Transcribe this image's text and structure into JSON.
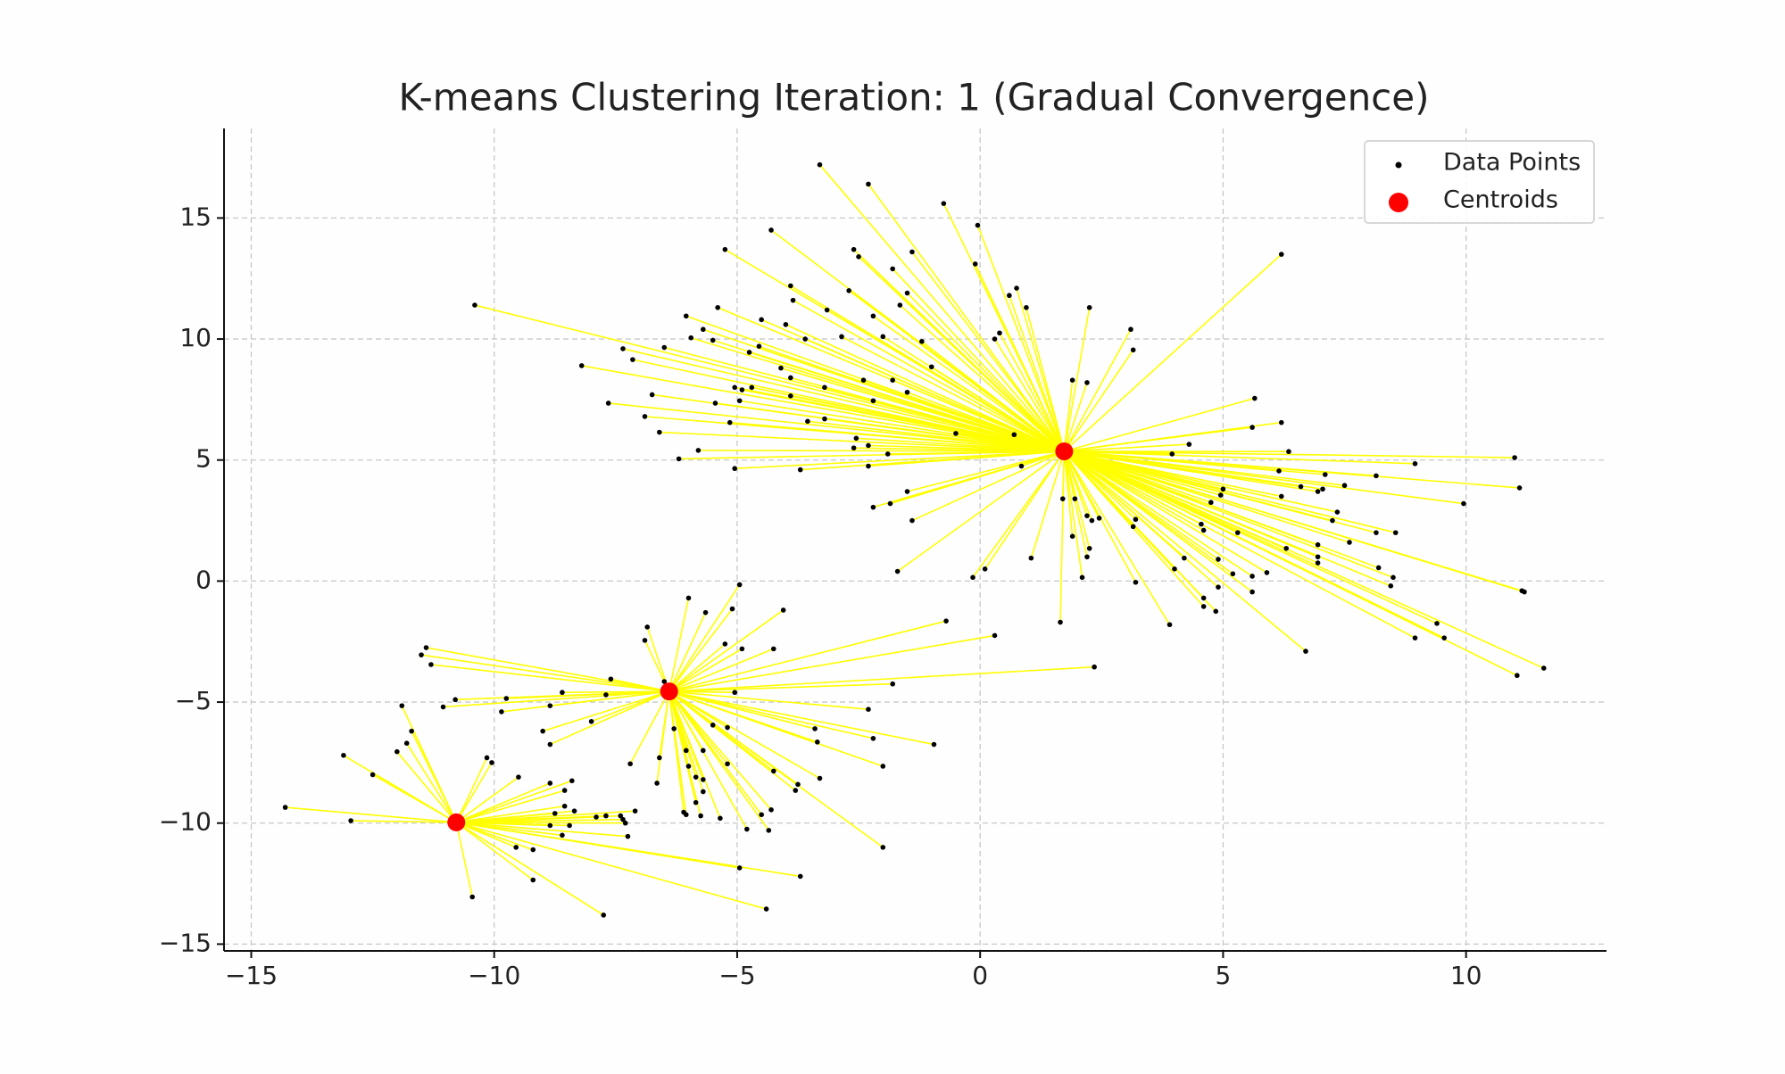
{
  "chart_data": {
    "type": "scatter",
    "title": "K-means Clustering Iteration: 1 (Gradual Convergence)",
    "xlim": [
      -15.56,
      12.89
    ],
    "ylim": [
      -15.28,
      18.7
    ],
    "xticks": [
      {
        "value": -15,
        "label": "−15"
      },
      {
        "value": -10,
        "label": "−10"
      },
      {
        "value": -5,
        "label": "−5"
      },
      0,
      5,
      10
    ],
    "yticks": [
      {
        "value": -15,
        "label": "−15"
      },
      {
        "value": -10,
        "label": "−10"
      },
      {
        "value": -5,
        "label": "−5"
      },
      0,
      5,
      10,
      15
    ],
    "grid": true,
    "legend": "upper right",
    "link_color": "#ffff00",
    "series": [
      {
        "name": "Data Points",
        "color": "#000000",
        "groups": [
          {
            "x": [
              -3.3,
              -2.3,
              -0.75,
              -0.05,
              6.2,
              -4.3,
              -5.25,
              -2.6,
              -1.4,
              -0.1,
              -1.8,
              -2.5,
              -3.9,
              -2.7,
              -1.5,
              0.75,
              0.6,
              0.95,
              2.25,
              -10.4,
              -5.4,
              -3.85,
              -3.15,
              -2.2,
              -1.65,
              -6.05,
              -5.7,
              -4.5,
              -4.0,
              -2.85,
              -2.0,
              0.3,
              0.4,
              3.1,
              3.15,
              -7.35,
              -6.5,
              -5.95,
              -5.5,
              -7.15,
              -4.75,
              -4.55,
              -3.6,
              -1.2,
              -8.2,
              -4.1,
              -1.0,
              1.9,
              2.2,
              -6.75,
              -3.9,
              -5.05,
              -4.9,
              -4.7,
              -3.2,
              -2.4,
              -1.8,
              -1.5,
              5.65,
              -7.65,
              -5.45,
              -4.95,
              -3.9,
              -2.2,
              -6.9,
              -6.6,
              -5.15,
              -3.55,
              -3.2,
              5.6,
              6.2,
              0.7,
              -2.55,
              -0.5,
              4.3,
              -5.8,
              -2.6,
              -2.3,
              -1.9,
              6.35,
              -6.2,
              3.95,
              11.0,
              8.95,
              -5.05,
              -3.7,
              -2.3,
              0.85,
              7.1,
              8.15,
              6.15,
              6.6,
              7.05,
              7.5,
              6.95,
              11.1,
              5.0,
              4.95,
              -1.5,
              6.2,
              1.7,
              1.95,
              4.75,
              9.95,
              -1.85,
              -2.2,
              7.35,
              7.25,
              2.2,
              3.2,
              2.3,
              2.45,
              -1.4,
              4.55,
              3.15,
              1.9,
              4.6,
              5.3,
              8.15,
              8.55,
              7.6,
              6.95,
              6.3,
              2.25,
              6.95,
              4.2,
              4.9,
              2.2,
              1.05,
              6.95,
              4.0,
              0.1,
              -1.7,
              5.9,
              5.2,
              5.6,
              8.2,
              2.1,
              -0.15,
              8.5,
              8.45,
              3.2,
              4.9,
              5.6,
              11.15,
              11.2,
              4.6,
              4.6,
              4.85,
              1.65,
              3.9,
              9.4,
              8.95,
              9.55,
              6.7,
              11.6,
              11.05
            ],
            "values": [
              17.2,
              16.4,
              15.6,
              14.7,
              13.5,
              14.5,
              13.7,
              13.7,
              13.6,
              13.1,
              12.9,
              13.4,
              12.2,
              12.0,
              11.9,
              12.1,
              11.8,
              11.3,
              11.3,
              11.4,
              11.3,
              11.6,
              11.2,
              10.95,
              11.4,
              10.95,
              10.4,
              10.8,
              10.6,
              10.1,
              10.1,
              10.0,
              10.25,
              10.4,
              9.55,
              9.6,
              9.65,
              10.05,
              9.95,
              9.15,
              9.45,
              9.7,
              10.0,
              9.9,
              8.9,
              8.8,
              8.85,
              8.3,
              8.2,
              7.7,
              8.4,
              8.0,
              7.9,
              8.0,
              8.0,
              8.3,
              8.3,
              7.8,
              7.55,
              7.35,
              7.35,
              7.45,
              7.65,
              7.45,
              6.8,
              6.15,
              6.55,
              6.6,
              6.7,
              6.35,
              6.55,
              6.05,
              5.9,
              6.1,
              5.65,
              5.4,
              5.5,
              5.6,
              5.25,
              5.35,
              5.05,
              5.25,
              5.1,
              4.85,
              4.65,
              4.6,
              4.75,
              4.75,
              4.4,
              4.35,
              4.55,
              3.9,
              3.8,
              3.95,
              3.7,
              3.85,
              3.8,
              3.55,
              3.7,
              3.5,
              3.4,
              3.4,
              3.25,
              3.2,
              3.2,
              3.05,
              2.85,
              2.5,
              2.7,
              2.55,
              2.5,
              2.6,
              2.5,
              2.35,
              2.25,
              1.85,
              2.1,
              2.0,
              2.0,
              2.0,
              1.6,
              1.5,
              1.35,
              1.35,
              1.0,
              0.95,
              0.9,
              1.0,
              0.95,
              0.75,
              0.5,
              0.5,
              0.4,
              0.35,
              0.3,
              0.2,
              0.55,
              0.15,
              0.15,
              0.15,
              -0.2,
              -0.05,
              -0.25,
              -0.45,
              -0.4,
              -0.45,
              -0.7,
              -1.05,
              -1.25,
              -1.7,
              -1.8,
              -1.75,
              -2.35,
              -2.35,
              -2.9,
              -3.6,
              -3.9
            ]
          },
          {
            "x": [
              -4.95,
              -6.0,
              -4.05,
              -5.65,
              -5.1,
              -0.7,
              -6.85,
              0.3,
              -6.9,
              -5.25,
              -4.9,
              -4.25,
              -11.4,
              -11.5,
              -11.3,
              2.35,
              -7.6,
              -6.5,
              -1.8,
              -8.6,
              -7.7,
              -5.05,
              -10.8,
              -9.75,
              -11.05,
              -8.85,
              -2.3,
              -9.85,
              -8.0,
              -5.5,
              -5.2,
              -3.4,
              -6.3,
              -9.0,
              -2.2,
              -3.35,
              -0.95,
              -8.85,
              -6.05,
              -5.7,
              -6.6,
              -7.2,
              -5.2,
              -6.0,
              -2.0,
              -4.25,
              -5.85,
              -5.7,
              -3.3,
              -6.65,
              -3.75,
              -3.8,
              -5.7,
              -5.85,
              -4.3,
              -6.1,
              -6.05,
              -5.75,
              -4.5,
              -5.35,
              -4.8,
              -4.35,
              -2.0
            ],
            "values": [
              -0.15,
              -0.7,
              -1.2,
              -1.3,
              -1.15,
              -1.65,
              -1.9,
              -2.25,
              -2.45,
              -2.6,
              -2.8,
              -2.8,
              -2.75,
              -3.05,
              -3.45,
              -3.55,
              -4.05,
              -4.15,
              -4.25,
              -4.6,
              -4.7,
              -4.6,
              -4.9,
              -4.85,
              -5.2,
              -5.15,
              -5.3,
              -5.4,
              -5.8,
              -5.95,
              -6.05,
              -6.1,
              -6.1,
              -6.2,
              -6.5,
              -6.65,
              -6.75,
              -6.75,
              -7.0,
              -7.0,
              -7.3,
              -7.55,
              -7.55,
              -7.65,
              -7.65,
              -7.85,
              -8.1,
              -8.2,
              -8.15,
              -8.35,
              -8.4,
              -8.65,
              -8.7,
              -9.15,
              -9.45,
              -9.55,
              -9.65,
              -9.7,
              -9.65,
              -9.8,
              -10.25,
              -10.3,
              -11.0
            ]
          },
          {
            "x": [
              -11.9,
              -11.7,
              -11.8,
              -12.0,
              -13.1,
              -10.15,
              -10.05,
              -12.5,
              -9.5,
              -8.4,
              -8.85,
              -8.55,
              -14.3,
              -8.55,
              -8.35,
              -8.75,
              -7.7,
              -7.4,
              -7.35,
              -12.95,
              -8.85,
              -8.45,
              -7.3,
              -7.9,
              -7.1,
              -8.6,
              -7.25,
              -9.55,
              -9.2,
              -4.95,
              -3.7,
              -9.2,
              -10.45,
              -4.4,
              -7.75
            ],
            "values": [
              -5.15,
              -6.2,
              -6.7,
              -7.05,
              -7.2,
              -7.3,
              -7.5,
              -8.0,
              -8.1,
              -8.25,
              -8.35,
              -8.65,
              -9.35,
              -9.3,
              -9.5,
              -9.6,
              -9.7,
              -9.7,
              -9.85,
              -9.9,
              -10.1,
              -10.1,
              -10.0,
              -9.75,
              -9.5,
              -10.5,
              -10.55,
              -11.0,
              -11.1,
              -11.85,
              -12.2,
              -12.35,
              -13.05,
              -13.55,
              -13.8
            ]
          }
        ]
      },
      {
        "name": "Centroids",
        "color": "#ff0000",
        "x": [
          1.73,
          -6.4,
          -10.78
        ],
        "values": [
          5.36,
          -4.56,
          -9.97
        ]
      }
    ]
  }
}
